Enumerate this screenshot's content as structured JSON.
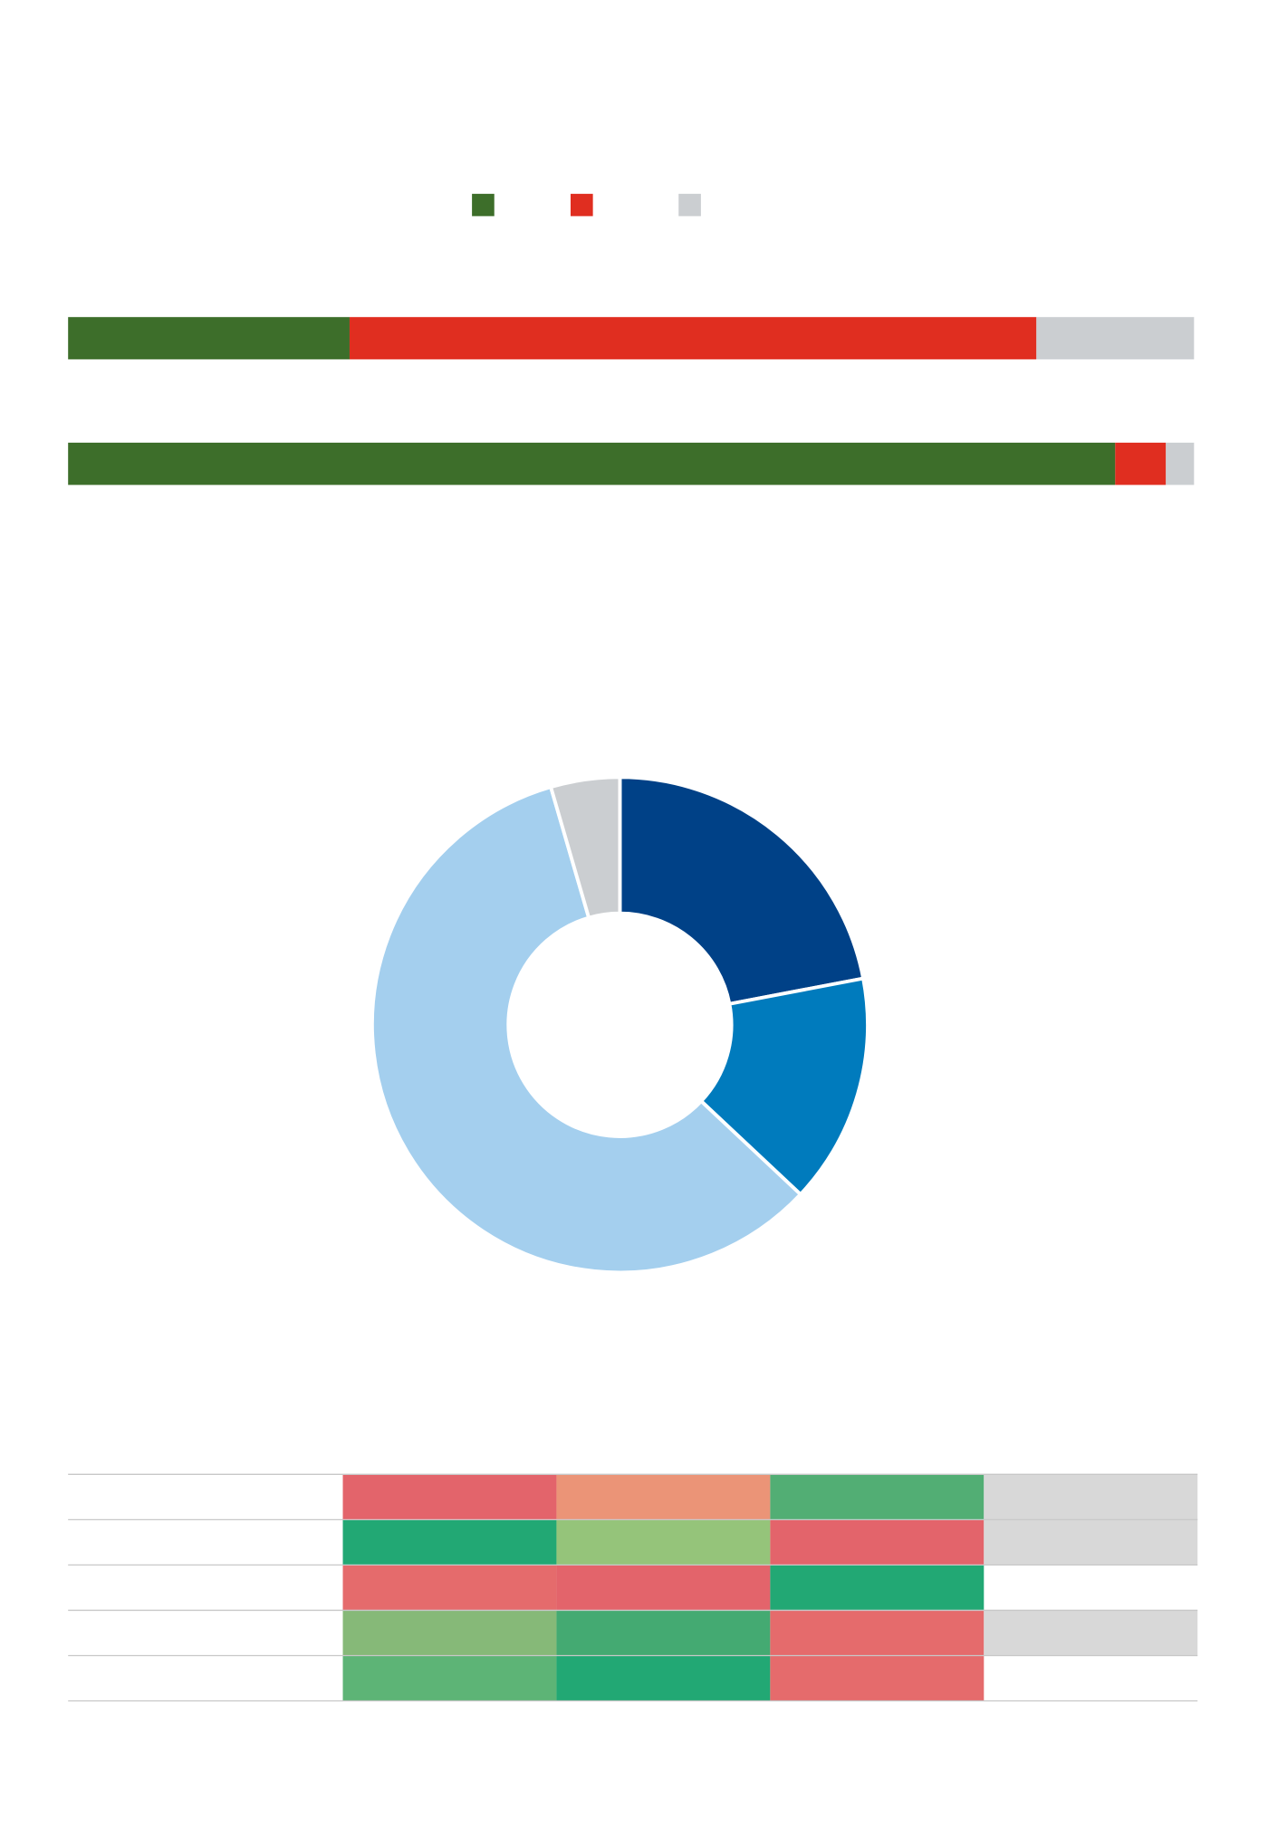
{
  "chart_data": [
    {
      "type": "stacked-bar",
      "orientation": "horizontal",
      "xlim": [
        0,
        100
      ],
      "series": [
        {
          "color": "#3d6e2a",
          "values": [
            25,
            93
          ]
        },
        {
          "color": "#e02e20",
          "values": [
            61,
            4.5
          ]
        },
        {
          "color": "#cbced1",
          "values": [
            14,
            2.5
          ]
        }
      ]
    },
    {
      "type": "donut",
      "values": [
        22,
        15,
        58.5,
        4.5
      ],
      "colors": [
        "#004187",
        "#007bbd",
        "#a4cfee",
        "#cbced1"
      ]
    }
  ],
  "table": {
    "cell_colors": [
      [
        "#e3646b",
        "#eb9477",
        "#52ae74",
        "#d8d8d8"
      ],
      [
        "#22a874",
        "#95c47a",
        "#e3646b",
        "#d8d8d8"
      ],
      [
        "#e56b6c",
        "#e3646b",
        "#22a874",
        null
      ],
      [
        "#86b978",
        "#44aa72",
        "#e56b6c",
        "#d8d8d8"
      ],
      [
        "#5db476",
        "#22a874",
        "#e56b6c",
        null
      ]
    ]
  }
}
